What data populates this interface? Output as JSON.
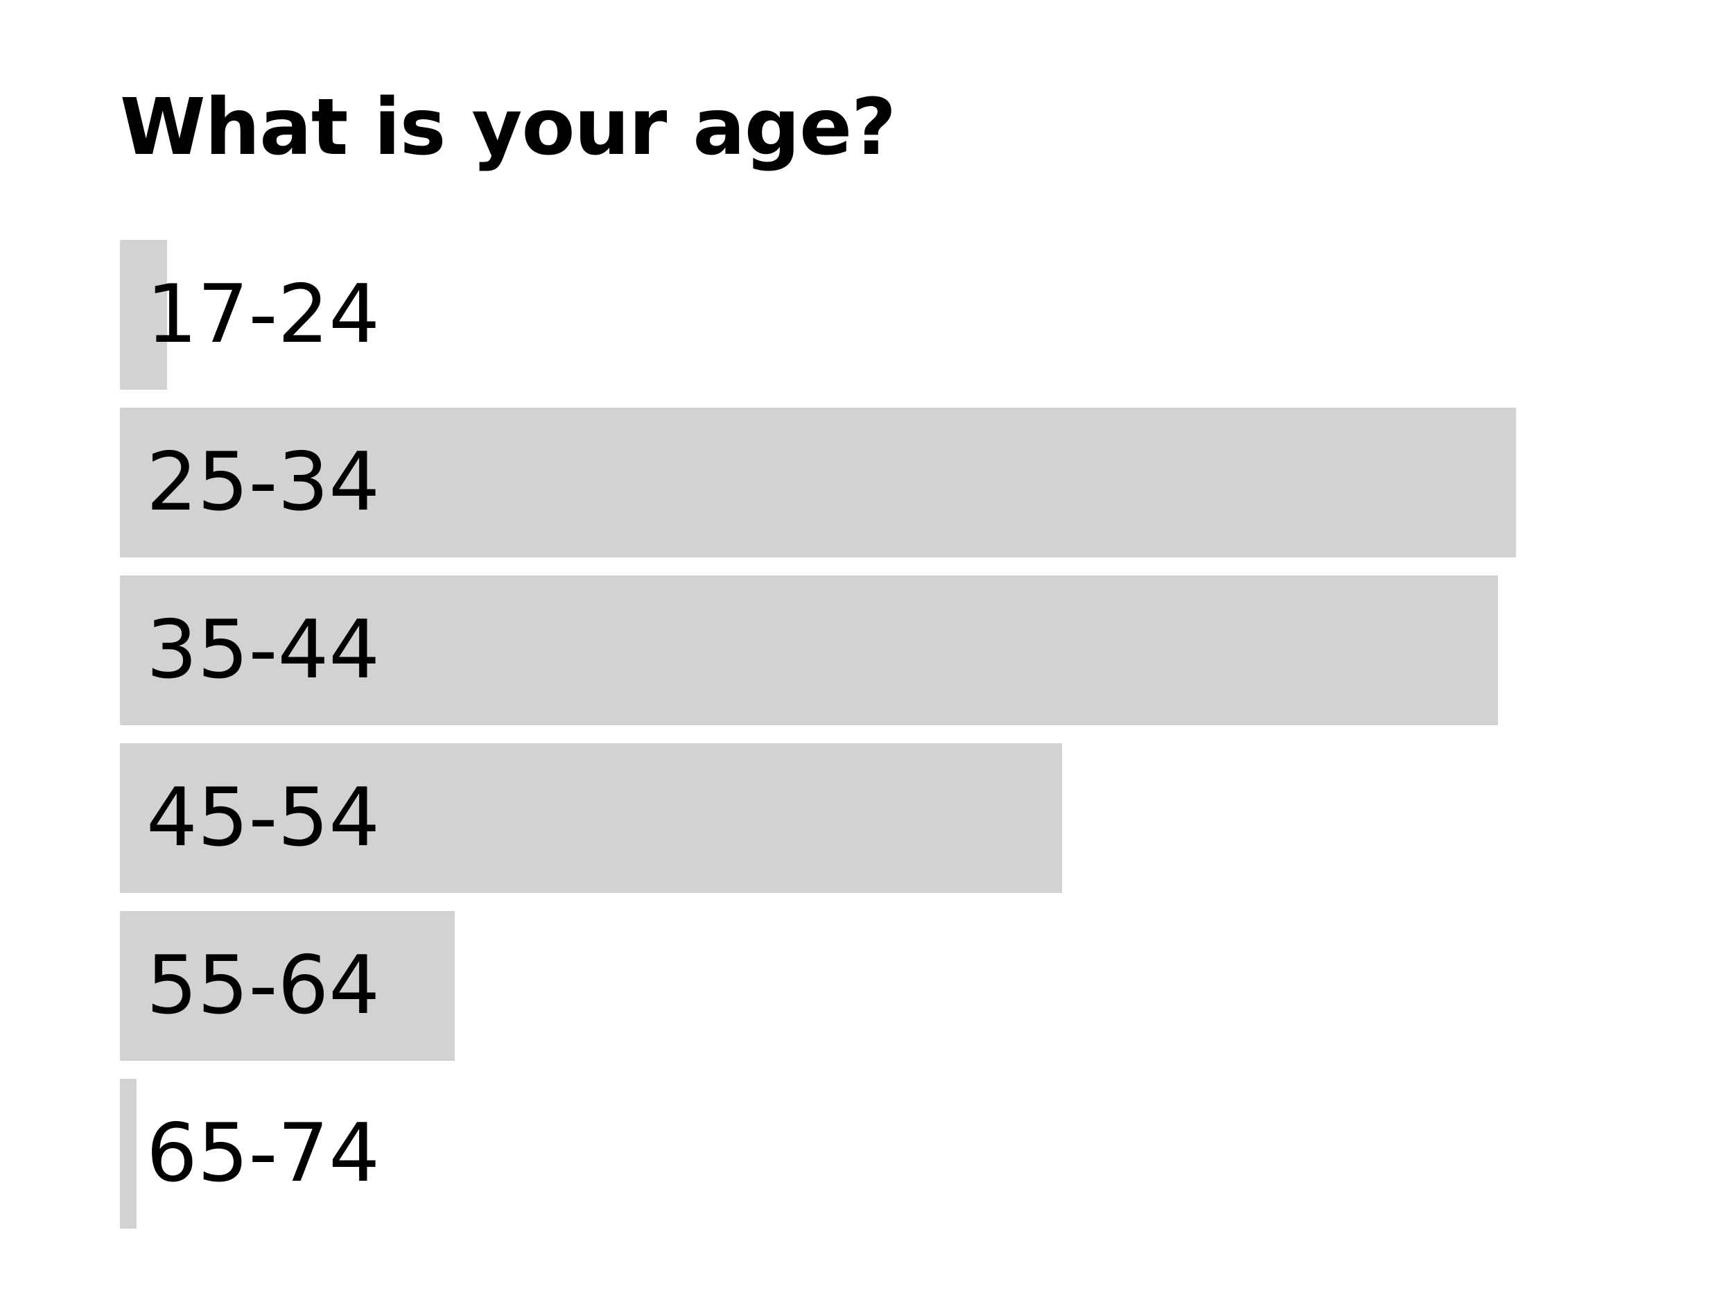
{
  "colors": {
    "bar": "#d1d2d4",
    "text": "#000000",
    "background": "#ffffff"
  },
  "chart_data": {
    "type": "bar",
    "orientation": "horizontal",
    "title": "What is your age?",
    "categories": [
      "17-24",
      "25-34",
      "35-44",
      "45-54",
      "55-64",
      "65-74"
    ],
    "values": [
      3.4,
      100,
      98.7,
      67.5,
      24,
      1.2
    ],
    "xlim": [
      0,
      100
    ],
    "grid": false,
    "legend": "none"
  }
}
